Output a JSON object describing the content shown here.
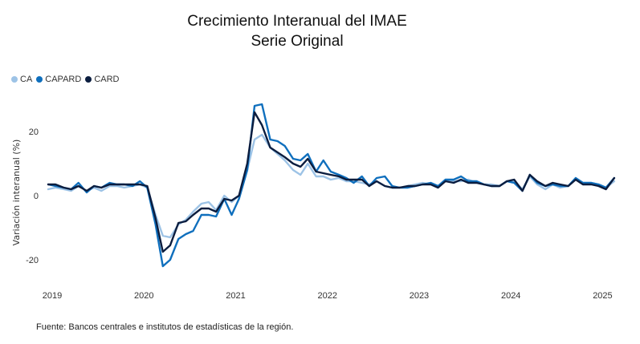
{
  "header": {
    "title": "Crecimiento Interanual del IMAE",
    "subtitle": "Serie Original"
  },
  "footnote": "Fuente: Bancos centrales e institutos de estadísticas de la región.",
  "colors": {
    "CA": "#9dc3e6",
    "CAPARD": "#0f6fbd",
    "CARD": "#0b1d3f"
  },
  "chart_data": {
    "type": "line",
    "ylabel": "Variación interanual (%)",
    "xlabel": "",
    "ylim": [
      -29,
      36
    ],
    "xlim": [
      2019.0,
      2025.25
    ],
    "y_ticks": [
      -20,
      0,
      20
    ],
    "x_ticks": [
      "2019",
      "2020",
      "2021",
      "2022",
      "2023",
      "2024",
      "2025"
    ],
    "grid": false,
    "legend_position": "top-left",
    "x": [
      2019.0,
      2019.08,
      2019.17,
      2019.25,
      2019.33,
      2019.42,
      2019.5,
      2019.58,
      2019.67,
      2019.75,
      2019.83,
      2019.92,
      2020.0,
      2020.08,
      2020.17,
      2020.25,
      2020.33,
      2020.42,
      2020.5,
      2020.58,
      2020.67,
      2020.75,
      2020.83,
      2020.92,
      2021.0,
      2021.08,
      2021.17,
      2021.25,
      2021.33,
      2021.42,
      2021.5,
      2021.58,
      2021.67,
      2021.75,
      2021.83,
      2021.92,
      2022.0,
      2022.08,
      2022.17,
      2022.25,
      2022.33,
      2022.42,
      2022.5,
      2022.58,
      2022.67,
      2022.75,
      2022.83,
      2022.92,
      2023.0,
      2023.08,
      2023.17,
      2023.25,
      2023.33,
      2023.42,
      2023.5,
      2023.58,
      2023.67,
      2023.75,
      2023.83,
      2023.92,
      2024.0,
      2024.08,
      2024.17,
      2024.25,
      2024.33,
      2024.42,
      2024.5,
      2024.58,
      2024.67,
      2024.75,
      2024.83,
      2024.92,
      2025.0,
      2025.08,
      2025.17
    ],
    "series": [
      {
        "name": "CA",
        "values": [
          2.0,
          2.5,
          2.0,
          1.5,
          3.0,
          1.5,
          2.5,
          1.5,
          3.0,
          3.0,
          2.5,
          3.0,
          3.5,
          2.5,
          -6.0,
          -12.5,
          -13.0,
          -9.0,
          -7.5,
          -5.0,
          -2.5,
          -2.0,
          -4.5,
          0.0,
          -2.0,
          0.0,
          8.0,
          17.5,
          19.0,
          15.0,
          13.0,
          11.0,
          8.0,
          6.5,
          10.0,
          6.0,
          6.0,
          5.0,
          5.5,
          4.5,
          4.5,
          4.0,
          3.5,
          4.5,
          3.0,
          2.5,
          2.5,
          3.0,
          3.5,
          4.0,
          3.5,
          3.0,
          4.5,
          4.5,
          4.5,
          5.0,
          4.0,
          3.5,
          3.5,
          3.0,
          4.5,
          4.5,
          2.0,
          6.0,
          3.5,
          2.0,
          3.5,
          2.5,
          3.0,
          5.5,
          3.5,
          4.0,
          3.5,
          2.5,
          4.5
        ]
      },
      {
        "name": "CAPARD",
        "values": [
          3.5,
          3.0,
          2.5,
          2.0,
          4.0,
          1.0,
          3.0,
          2.5,
          4.0,
          3.5,
          3.5,
          3.0,
          4.5,
          2.5,
          -9.0,
          -22.0,
          -20.0,
          -13.5,
          -12.0,
          -11.0,
          -6.0,
          -6.0,
          -6.5,
          -1.0,
          -6.0,
          -1.0,
          8.0,
          28.0,
          28.5,
          17.5,
          17.0,
          15.5,
          11.5,
          11.0,
          13.0,
          7.5,
          11.0,
          7.5,
          6.5,
          5.5,
          4.0,
          6.0,
          3.0,
          5.5,
          6.0,
          3.0,
          2.5,
          2.5,
          3.0,
          3.5,
          4.0,
          3.0,
          5.0,
          5.0,
          6.0,
          4.5,
          4.5,
          3.5,
          3.0,
          3.0,
          4.5,
          4.0,
          1.5,
          6.5,
          4.0,
          3.0,
          3.5,
          3.0,
          3.0,
          5.5,
          4.0,
          4.0,
          3.5,
          2.5,
          5.5
        ]
      },
      {
        "name": "CARD",
        "values": [
          3.5,
          3.5,
          2.5,
          2.0,
          3.0,
          1.5,
          3.0,
          2.5,
          3.5,
          3.5,
          3.5,
          3.5,
          3.5,
          3.0,
          -7.0,
          -17.5,
          -15.5,
          -8.5,
          -8.0,
          -6.0,
          -4.0,
          -4.0,
          -5.0,
          -1.0,
          -1.5,
          0.0,
          10.0,
          26.0,
          22.0,
          15.0,
          13.5,
          12.0,
          10.0,
          9.0,
          11.5,
          7.5,
          7.0,
          6.5,
          6.0,
          5.0,
          5.0,
          5.0,
          3.0,
          4.5,
          3.0,
          2.5,
          2.5,
          3.0,
          3.0,
          3.5,
          3.5,
          2.5,
          4.5,
          4.0,
          5.0,
          4.0,
          4.0,
          3.5,
          3.0,
          3.0,
          4.5,
          5.0,
          1.5,
          6.5,
          4.5,
          3.0,
          4.0,
          3.5,
          3.0,
          5.0,
          3.5,
          3.5,
          3.0,
          2.0,
          5.5
        ]
      }
    ]
  }
}
